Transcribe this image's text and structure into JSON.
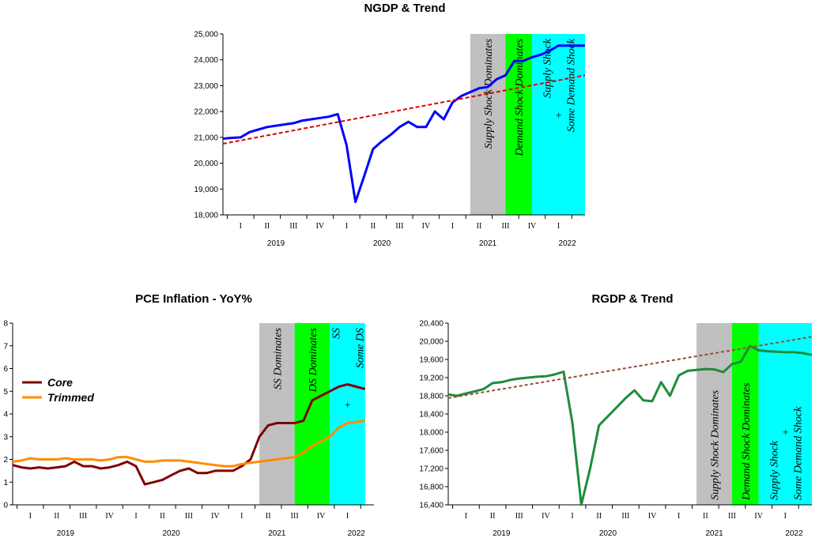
{
  "chart_data": [
    {
      "id": "ngdp",
      "type": "line",
      "title": "NGDP & Trend",
      "ylim": [
        18000,
        25000
      ],
      "yticks": [
        "18,000",
        "19,000",
        "20,000",
        "21,000",
        "22,000",
        "23,000",
        "24,000",
        "25,000"
      ],
      "ytick_values": [
        18000,
        19000,
        20000,
        21000,
        22000,
        23000,
        24000,
        25000
      ],
      "xlim": [
        0,
        41
      ],
      "quarter_labels": [
        "I",
        "II",
        "III",
        "IV",
        "I",
        "II",
        "III",
        "IV",
        "I",
        "II",
        "III",
        "IV",
        "I"
      ],
      "year_labels": [
        {
          "label": "2019",
          "x": 6
        },
        {
          "label": "2020",
          "x": 18
        },
        {
          "label": "2021",
          "x": 30
        },
        {
          "label": "2022",
          "x": 39
        }
      ],
      "shades": [
        {
          "x0": 28,
          "x1": 32,
          "color": "#c0c0c0",
          "label": [
            "Supply Shock Dominates"
          ]
        },
        {
          "x0": 32,
          "x1": 35,
          "color": "#00ff00",
          "label": [
            "Demand Shock Dominates"
          ]
        },
        {
          "x0": 35,
          "x1": 41,
          "color": "#00ffff",
          "label": [
            "Supply Shock",
            "+",
            "Some Demand Shock"
          ]
        }
      ],
      "series": [
        {
          "color": "#0000ff",
          "width": 3,
          "dash": "",
          "x": [
            0,
            1,
            2,
            3,
            4,
            5,
            6,
            7,
            8,
            9,
            10,
            11,
            12,
            13,
            14,
            15,
            16,
            17,
            18,
            19,
            20,
            21,
            22,
            23,
            24,
            25,
            26,
            27,
            28,
            29,
            30,
            31,
            32,
            33,
            34,
            35,
            36,
            37,
            38,
            39,
            40,
            41
          ],
          "y": [
            20950,
            20980,
            21000,
            21200,
            21300,
            21400,
            21450,
            21500,
            21550,
            21650,
            21700,
            21750,
            21800,
            21900,
            20700,
            18500,
            19500,
            20550,
            20850,
            21100,
            21400,
            21600,
            21400,
            21400,
            22000,
            21700,
            22350,
            22600,
            22750,
            22900,
            22950,
            23250,
            23400,
            23950,
            23950,
            24100,
            24200,
            24350,
            24550,
            24550,
            24550,
            24550
          ]
        },
        {
          "color": "#e00000",
          "width": 2,
          "dash": "5,3",
          "x": [
            0,
            41
          ],
          "y": [
            20750,
            23400
          ]
        }
      ]
    },
    {
      "id": "pce",
      "type": "line",
      "title": "PCE Inflation - YoY%",
      "ylim": [
        0,
        8
      ],
      "yticks": [
        "0",
        "1",
        "2",
        "3",
        "4",
        "5",
        "6",
        "7",
        "8"
      ],
      "ytick_values": [
        0,
        1,
        2,
        3,
        4,
        5,
        6,
        7,
        8
      ],
      "xlim": [
        0,
        41
      ],
      "quarter_labels": [
        "I",
        "II",
        "III",
        "IV",
        "I",
        "II",
        "III",
        "IV",
        "I",
        "II",
        "III",
        "IV",
        "I"
      ],
      "year_labels": [
        {
          "label": "2019",
          "x": 6
        },
        {
          "label": "2020",
          "x": 18
        },
        {
          "label": "2021",
          "x": 30
        },
        {
          "label": "2022",
          "x": 39
        }
      ],
      "shades": [
        {
          "x0": 28,
          "x1": 32,
          "color": "#c0c0c0",
          "label": [
            "SS Dominates"
          ]
        },
        {
          "x0": 32,
          "x1": 36,
          "color": "#00ff00",
          "label": [
            "DS Dominates"
          ]
        },
        {
          "x0": 36,
          "x1": 40,
          "color": "#00ffff",
          "label": [
            "SS",
            "+",
            "Some DS"
          ]
        }
      ],
      "legend": [
        {
          "name": "Core",
          "color": "#800000"
        },
        {
          "name": "Trimmed",
          "color": "#ff8c00"
        }
      ],
      "series": [
        {
          "name": "Core",
          "color": "#800000",
          "width": 3,
          "dash": "",
          "x": [
            0,
            1,
            2,
            3,
            4,
            5,
            6,
            7,
            8,
            9,
            10,
            11,
            12,
            13,
            14,
            15,
            16,
            17,
            18,
            19,
            20,
            21,
            22,
            23,
            24,
            25,
            26,
            27,
            28,
            29,
            30,
            31,
            32,
            33,
            34,
            35,
            36,
            37,
            38,
            39,
            40
          ],
          "y": [
            1.75,
            1.65,
            1.6,
            1.65,
            1.6,
            1.65,
            1.7,
            1.9,
            1.7,
            1.7,
            1.6,
            1.65,
            1.75,
            1.9,
            1.7,
            0.9,
            1.0,
            1.1,
            1.3,
            1.5,
            1.6,
            1.4,
            1.4,
            1.5,
            1.5,
            1.5,
            1.7,
            2.0,
            3.0,
            3.5,
            3.6,
            3.6,
            3.6,
            3.7,
            4.6,
            4.8,
            5.0,
            5.2,
            5.3,
            5.2,
            5.1
          ]
        },
        {
          "name": "Trimmed",
          "color": "#ff8c00",
          "width": 3,
          "dash": "",
          "x": [
            0,
            1,
            2,
            3,
            4,
            5,
            6,
            7,
            8,
            9,
            10,
            11,
            12,
            13,
            14,
            15,
            16,
            17,
            18,
            19,
            20,
            21,
            22,
            23,
            24,
            25,
            26,
            27,
            28,
            29,
            30,
            31,
            32,
            33,
            34,
            35,
            36,
            37,
            38,
            39,
            40
          ],
          "y": [
            1.9,
            1.95,
            2.05,
            2.0,
            2.0,
            2.0,
            2.05,
            2.0,
            2.0,
            2.0,
            1.95,
            2.0,
            2.1,
            2.1,
            2.0,
            1.9,
            1.9,
            1.95,
            1.95,
            1.95,
            1.9,
            1.85,
            1.8,
            1.75,
            1.7,
            1.7,
            1.8,
            1.85,
            1.9,
            1.95,
            2.0,
            2.05,
            2.1,
            2.3,
            2.6,
            2.8,
            3.0,
            3.4,
            3.6,
            3.65,
            3.7
          ]
        }
      ]
    },
    {
      "id": "rgdp",
      "type": "line",
      "title": "RGDP & Trend",
      "ylim": [
        16400,
        20400
      ],
      "yticks": [
        "16,400",
        "16,800",
        "17,200",
        "17,600",
        "18,000",
        "18,400",
        "18,800",
        "19,200",
        "19,600",
        "20,000",
        "20,400"
      ],
      "ytick_values": [
        16400,
        16800,
        17200,
        17600,
        18000,
        18400,
        18800,
        19200,
        19600,
        20000,
        20400
      ],
      "xlim": [
        0,
        41
      ],
      "quarter_labels": [
        "I",
        "II",
        "III",
        "IV",
        "I",
        "II",
        "III",
        "IV",
        "I",
        "II",
        "III",
        "IV",
        "I"
      ],
      "year_labels": [
        {
          "label": "2019",
          "x": 6
        },
        {
          "label": "2020",
          "x": 18
        },
        {
          "label": "2021",
          "x": 30
        },
        {
          "label": "2022",
          "x": 39
        }
      ],
      "shades": [
        {
          "x0": 28,
          "x1": 32,
          "color": "#c0c0c0",
          "label": [
            "Supply Shock Dominates"
          ]
        },
        {
          "x0": 32,
          "x1": 35,
          "color": "#00ff00",
          "label": [
            "Demand Shock Dominates"
          ]
        },
        {
          "x0": 35,
          "x1": 41,
          "color": "#00ffff",
          "label": [
            "Supply Shock",
            "+",
            "Some Demand Shock"
          ]
        }
      ],
      "series": [
        {
          "color": "#1e8c3c",
          "width": 3,
          "dash": "",
          "x": [
            0,
            1,
            2,
            3,
            4,
            5,
            6,
            7,
            8,
            9,
            10,
            11,
            12,
            13,
            14,
            15,
            16,
            17,
            18,
            19,
            20,
            21,
            22,
            23,
            24,
            25,
            26,
            27,
            28,
            29,
            30,
            31,
            32,
            33,
            34,
            35,
            36,
            37,
            38,
            39,
            40,
            41
          ],
          "y": [
            18830,
            18800,
            18850,
            18900,
            18950,
            19080,
            19100,
            19150,
            19180,
            19200,
            19220,
            19230,
            19270,
            19330,
            18200,
            16400,
            17200,
            18150,
            18350,
            18550,
            18750,
            18920,
            18700,
            18680,
            19100,
            18800,
            19250,
            19350,
            19370,
            19390,
            19380,
            19320,
            19500,
            19550,
            19900,
            19800,
            19780,
            19770,
            19760,
            19760,
            19740,
            19700
          ]
        },
        {
          "color": "#9a4a3a",
          "width": 2,
          "dash": "4,3",
          "x": [
            0,
            41
          ],
          "y": [
            18750,
            20100
          ]
        }
      ]
    }
  ]
}
